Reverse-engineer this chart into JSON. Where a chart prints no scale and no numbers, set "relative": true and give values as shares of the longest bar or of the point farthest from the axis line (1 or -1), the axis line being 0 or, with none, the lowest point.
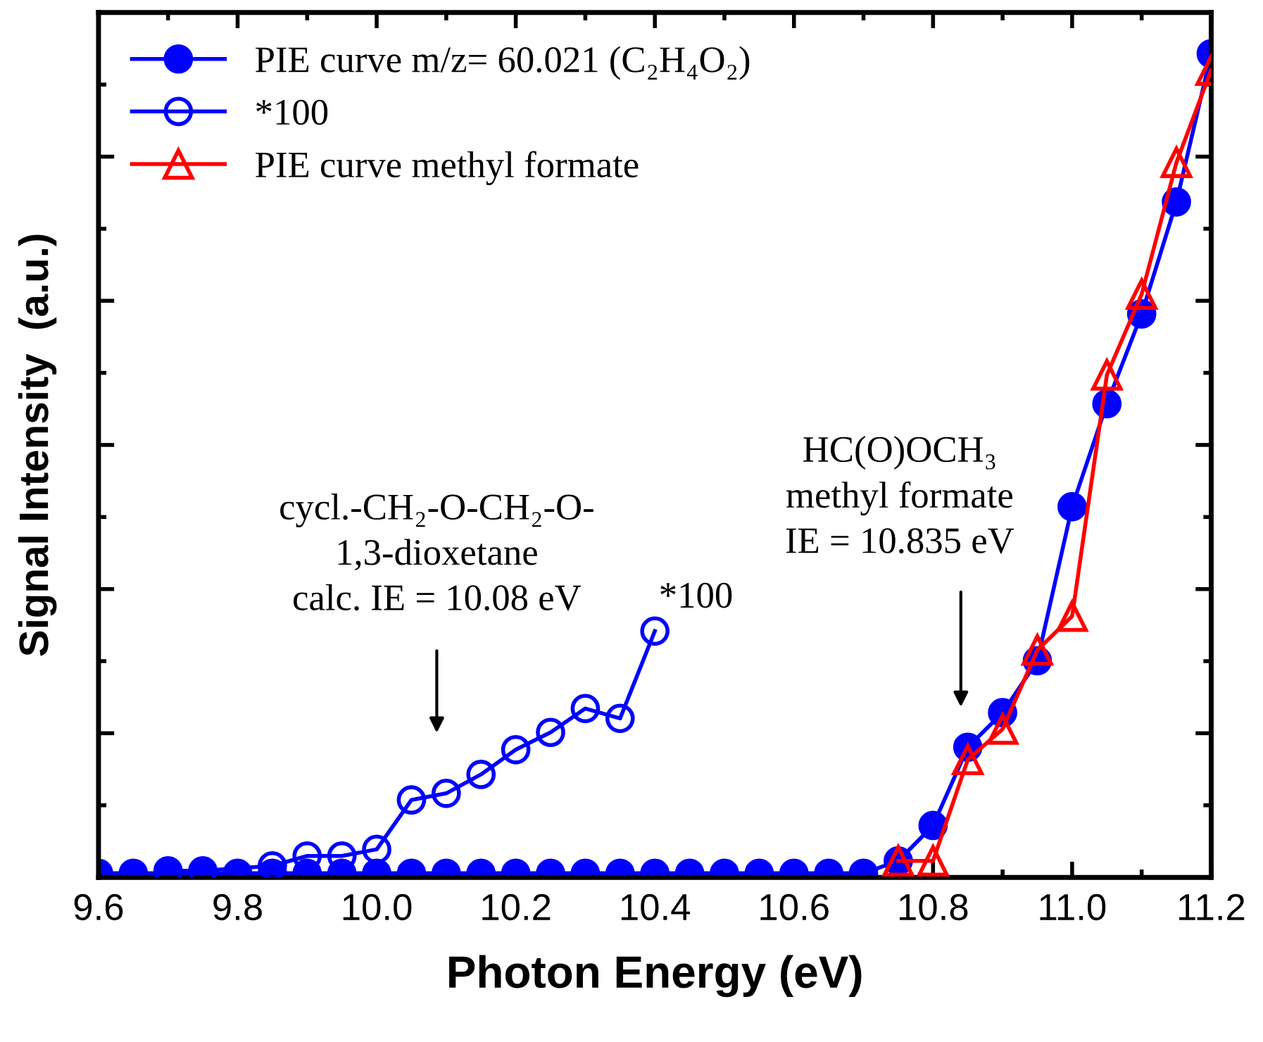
{
  "chart_data": {
    "type": "line",
    "relative": true,
    "xlabel": "Photon Energy (eV)",
    "ylabel": "Signal Intensity  (a.u.)",
    "xlim": [
      9.6,
      11.2
    ],
    "xticks": [
      {
        "value": 9.6,
        "label": "9.6"
      },
      {
        "value": 9.8,
        "label": "9.8"
      },
      {
        "value": 10.0,
        "label": "10.0"
      },
      {
        "value": 10.2,
        "label": "10.2"
      },
      {
        "value": 10.4,
        "label": "10.4"
      },
      {
        "value": 10.6,
        "label": "10.6"
      },
      {
        "value": 10.8,
        "label": "10.8"
      },
      {
        "value": 11.0,
        "label": "11.0"
      },
      {
        "value": 11.2,
        "label": "11.2"
      }
    ],
    "legend": "top left",
    "grid": false,
    "tick_labels": "x",
    "series": [
      {
        "name": "PIE curve m/z= 60.021 (C₂H₄O₂)",
        "color": "#0000ff",
        "marker": "circle",
        "x": [
          9.6,
          9.65,
          9.7,
          9.75,
          9.8,
          9.85,
          9.9,
          9.95,
          10.0,
          10.05,
          10.1,
          10.15,
          10.2,
          10.25,
          10.3,
          10.35,
          10.4,
          10.45,
          10.5,
          10.55,
          10.6,
          10.65,
          10.7,
          10.75,
          10.8,
          10.85,
          10.9,
          10.95,
          11.0,
          11.05,
          11.1,
          11.15,
          11.2
        ],
        "values": [
          0.005,
          0.005,
          0.005,
          0.005,
          0.005,
          0.005,
          0.005,
          0.005,
          0.005,
          0.005,
          0.005,
          0.005,
          0.005,
          0.005,
          0.005,
          0.005,
          0.005,
          0.005,
          0.005,
          0.005,
          0.005,
          0.005,
          0.005,
          0.02,
          0.063,
          0.158,
          0.2,
          0.263,
          0.45,
          0.575,
          0.684,
          0.82,
          1.0
        ]
      },
      {
        "name": "*100",
        "color": "#0000ff",
        "marker": "circle",
        "x": [
          9.7,
          9.75,
          9.85,
          9.9,
          9.95,
          10.0,
          10.05,
          10.1,
          10.15,
          10.2,
          10.25,
          10.3,
          10.35,
          10.4
        ],
        "values": [
          0.008,
          0.008,
          0.014,
          0.026,
          0.026,
          0.034,
          0.094,
          0.102,
          0.125,
          0.155,
          0.176,
          0.205,
          0.193,
          0.299
        ]
      },
      {
        "name": "PIE curve methyl formate",
        "color": "#ff0000",
        "marker": "triangle",
        "x": [
          10.75,
          10.8,
          10.85,
          10.9,
          10.95,
          11.0,
          11.05,
          11.1,
          11.15,
          11.2
        ],
        "values": [
          0.02,
          0.02,
          0.143,
          0.18,
          0.276,
          0.317,
          0.61,
          0.708,
          0.868,
          0.98
        ]
      }
    ],
    "annotations": [
      "cycl.-CH₂-O-CH₂-O-\n1,3-dioxetane\ncalc. IE = 10.08 eV",
      "HC(O)OCH₃\nmethyl formate\nIE = 10.835 eV",
      {
        "text": "*100",
        "x": 10.4,
        "y": 0.299
      }
    ]
  }
}
